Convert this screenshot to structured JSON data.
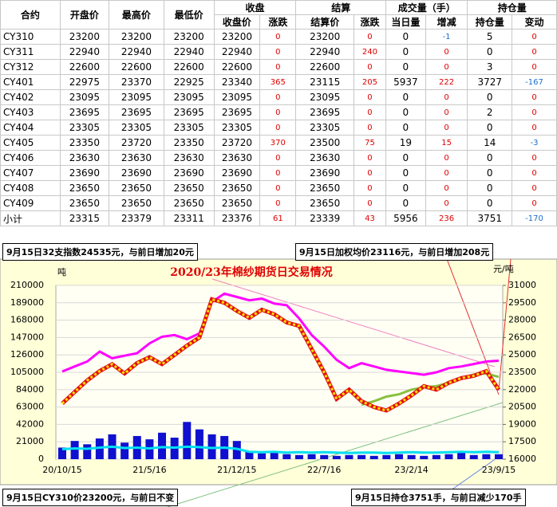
{
  "table": {
    "header_groups": [
      "收盘",
      "结算",
      "成交量（手）",
      "持仓量"
    ],
    "columns": [
      "合约",
      "开盘价",
      "最高价",
      "最低价",
      "收盘价",
      "涨跌",
      "结算价",
      "涨跌",
      "当日量",
      "增减",
      "持仓量",
      "变动"
    ],
    "rows": [
      [
        "CY310",
        23200,
        23200,
        23200,
        23200,
        0,
        23200,
        0,
        0,
        -1,
        5,
        0
      ],
      [
        "CY311",
        22940,
        22940,
        22940,
        22940,
        0,
        22940,
        240,
        0,
        0,
        0,
        0
      ],
      [
        "CY312",
        22600,
        22600,
        22600,
        22600,
        0,
        22600,
        0,
        0,
        0,
        3,
        0
      ],
      [
        "CY401",
        22975,
        23370,
        22925,
        23340,
        365,
        23115,
        205,
        5937,
        222,
        3727,
        -167
      ],
      [
        "CY402",
        23095,
        23095,
        23095,
        23095,
        0,
        23095,
        0,
        0,
        0,
        0,
        0
      ],
      [
        "CY403",
        23695,
        23695,
        23695,
        23695,
        0,
        23695,
        0,
        0,
        0,
        2,
        0
      ],
      [
        "CY404",
        23305,
        23305,
        23305,
        23305,
        0,
        23305,
        0,
        0,
        0,
        0,
        0
      ],
      [
        "CY405",
        23350,
        23720,
        23350,
        23720,
        370,
        23500,
        75,
        19,
        15,
        14,
        -3
      ],
      [
        "CY406",
        23630,
        23630,
        23630,
        23630,
        0,
        23630,
        0,
        0,
        0,
        0,
        0
      ],
      [
        "CY407",
        23690,
        23690,
        23690,
        23690,
        0,
        23690,
        0,
        0,
        0,
        0,
        0
      ],
      [
        "CY408",
        23650,
        23650,
        23650,
        23650,
        0,
        23650,
        0,
        0,
        0,
        0,
        0
      ],
      [
        "CY409",
        23650,
        23650,
        23650,
        23650,
        0,
        23650,
        0,
        0,
        0,
        0,
        0
      ],
      [
        "小计",
        23315,
        23379,
        23311,
        23376,
        61,
        23339,
        43,
        5956,
        236,
        3751,
        -170
      ]
    ]
  },
  "annotations": [
    "9月15日32支指数24535元，与前日增加20元",
    "9月15日加权均价23116元，与前日增加208元",
    "9月15日CY310价23200元，与前日不变",
    "9月15日持仓3751手，与前日减少170手"
  ],
  "chart_data": {
    "type": "line",
    "title": "2020/23年棉纱期货日交易情况",
    "y_label": "吨",
    "y2_label": "元/吨",
    "categories": [
      "20/10/15",
      null,
      null,
      null,
      null,
      null,
      null,
      "21/5/16",
      null,
      null,
      null,
      null,
      null,
      null,
      "21/12/15",
      null,
      null,
      null,
      null,
      null,
      null,
      "22/7/16",
      null,
      null,
      null,
      null,
      null,
      null,
      "23/2/14",
      null,
      null,
      null,
      null,
      null,
      null,
      "23/9/15"
    ],
    "ylim": [
      0,
      210000
    ],
    "yticks": [
      0,
      21000,
      42000,
      63000,
      84000,
      105000,
      126000,
      147000,
      168000,
      189000,
      210000
    ],
    "y2lim": [
      16000,
      31000
    ],
    "y2ticks": [
      16000,
      17500,
      19000,
      20500,
      22000,
      23500,
      25000,
      26500,
      28000,
      29500,
      31000
    ],
    "grid": true,
    "series": [
      {
        "type": "bar",
        "color": "#1010d0",
        "values": [
          14000,
          22000,
          18000,
          25000,
          30000,
          20000,
          28000,
          24000,
          32000,
          26000,
          45000,
          36000,
          30000,
          28000,
          22000,
          9000,
          7000,
          8000,
          6000,
          5000,
          6000,
          5000,
          4000,
          5000,
          5000,
          4000,
          5000,
          6000,
          5000,
          4000,
          5000,
          6000,
          8000,
          5000,
          6000,
          5956
        ]
      },
      {
        "type": "line",
        "color": "#00e0f0",
        "values": [
          12000,
          13000,
          12500,
          14000,
          15000,
          13500,
          14000,
          13000,
          14500,
          14000,
          15000,
          14500,
          13500,
          14000,
          12500,
          9000,
          8500,
          9000,
          8000,
          8500,
          8000,
          8500,
          8000,
          7500,
          8000,
          8000,
          7500,
          8000,
          8500,
          8000,
          8000,
          8500,
          9000,
          8500,
          9000,
          8500
        ]
      },
      {
        "type": "line",
        "color": "#ff00ff",
        "values": [
          106000,
          112000,
          118000,
          130000,
          122000,
          125000,
          128000,
          140000,
          148000,
          150000,
          145000,
          152000,
          190000,
          200000,
          196000,
          192000,
          194000,
          188000,
          186000,
          170000,
          150000,
          136000,
          120000,
          110000,
          116000,
          112000,
          108000,
          106000,
          104000,
          102000,
          105000,
          110000,
          112000,
          115000,
          118000,
          119000
        ]
      },
      {
        "type": "line",
        "color": "#88c040",
        "axis": "y2",
        "values": [
          null,
          null,
          null,
          null,
          null,
          null,
          null,
          null,
          null,
          null,
          null,
          null,
          null,
          null,
          null,
          null,
          null,
          null,
          null,
          null,
          null,
          null,
          null,
          null,
          20700,
          21000,
          21400,
          21600,
          22000,
          22200,
          22300,
          22600,
          23000,
          23300,
          23400,
          23100
        ]
      },
      {
        "type": "dotline",
        "color": "#e01010",
        "axis": "y2",
        "values": [
          20800,
          21800,
          22800,
          23600,
          24200,
          23400,
          24300,
          24800,
          24200,
          25000,
          25800,
          26500,
          29800,
          29500,
          28800,
          28200,
          28900,
          28500,
          27800,
          27500,
          25500,
          23500,
          21200,
          22000,
          21000,
          20500,
          20200,
          20800,
          21500,
          22300,
          22000,
          22600,
          23000,
          23200,
          23600,
          22000
        ]
      }
    ]
  }
}
